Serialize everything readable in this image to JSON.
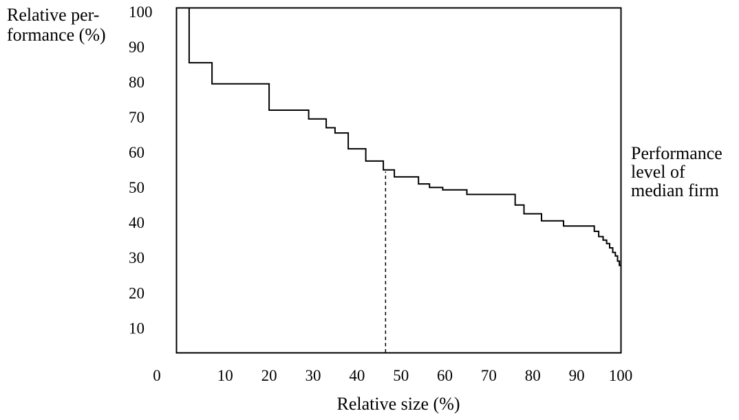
{
  "chart_data": {
    "type": "line",
    "step": true,
    "title": "",
    "ylabel_lines": [
      "Relative per-",
      "formance (%)"
    ],
    "xlabel": "Relative size (%)",
    "origin_label": "0",
    "xlim": [
      -1,
      100
    ],
    "ylim": [
      3,
      101
    ],
    "xticks": [
      10,
      20,
      30,
      40,
      50,
      60,
      70,
      80,
      90,
      100
    ],
    "yticks": [
      10,
      20,
      30,
      40,
      50,
      60,
      70,
      80,
      90,
      100
    ],
    "series": [
      {
        "x": [
          1.8,
          1.8,
          7,
          7,
          20,
          20,
          29,
          29,
          33,
          33,
          35,
          35,
          38,
          38,
          42,
          42,
          46,
          46,
          48.5,
          48.5,
          54,
          54,
          56.5,
          56.5,
          59.5,
          59.5,
          65,
          65,
          76,
          76,
          78,
          78,
          82,
          82,
          87,
          87,
          94,
          94,
          95,
          95,
          96,
          96,
          96.8,
          96.8,
          97.5,
          97.5,
          98.2,
          98.2,
          98.8,
          98.8,
          99.3,
          99.3,
          99.7,
          99.7,
          100
        ],
        "y": [
          101,
          85.5,
          85.5,
          79.5,
          79.5,
          72,
          72,
          69.5,
          69.5,
          67,
          67,
          65.5,
          65.5,
          61,
          61,
          57.5,
          57.5,
          55,
          55,
          53,
          53,
          51,
          51,
          50,
          50,
          49.3,
          49.3,
          48,
          48,
          45,
          45,
          42.5,
          42.5,
          40.5,
          40.5,
          39,
          39,
          37.5,
          37.5,
          36,
          36,
          35,
          35,
          34,
          34,
          32.8,
          32.8,
          31.5,
          31.5,
          30.5,
          30.5,
          29,
          29,
          27.8,
          27.8
        ]
      }
    ],
    "median_line": {
      "x": 46.5,
      "y_from": 3,
      "y_to": 54.5
    },
    "annotation_lines": [
      "Performance",
      "level of",
      "median firm"
    ]
  }
}
